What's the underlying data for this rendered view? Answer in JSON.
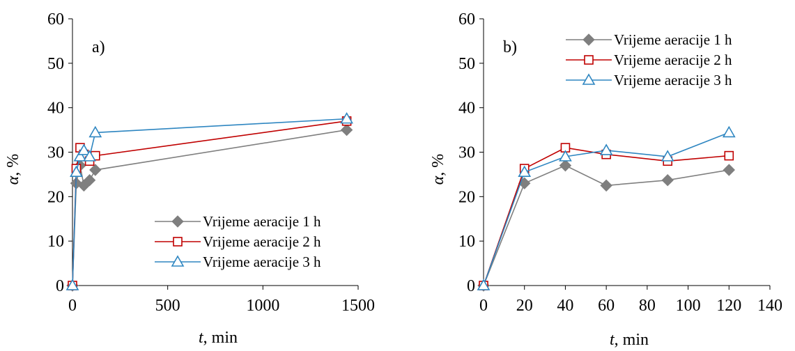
{
  "colors": {
    "series1": "#7f7f7f",
    "series2": "#c00000",
    "series3": "#2e86c1",
    "axis": "#000000"
  },
  "chart_data": [
    {
      "type": "line",
      "panel_label": "a)",
      "xlabel_italic": "t",
      "xlabel_rest": ", min",
      "ylabel_italic": "α",
      "ylabel_rest": ", %",
      "xlim": [
        0,
        1500
      ],
      "ylim": [
        0,
        60
      ],
      "xticks": [
        0,
        500,
        1000,
        1500
      ],
      "yticks": [
        0,
        10,
        20,
        30,
        40,
        50,
        60
      ],
      "legend_position": "bottom-right",
      "series": [
        {
          "name": "Vrijeme aeracije 1 h",
          "marker": "diamond",
          "x": [
            0,
            20,
            40,
            60,
            90,
            120,
            1440
          ],
          "y": [
            0,
            23,
            27,
            22.5,
            23.7,
            26,
            35
          ]
        },
        {
          "name": "Vrijeme aeracije 2 h",
          "marker": "square",
          "x": [
            0,
            20,
            40,
            60,
            90,
            120,
            1440
          ],
          "y": [
            0,
            26.3,
            31,
            29.5,
            28,
            29.2,
            37
          ]
        },
        {
          "name": "Vrijeme aeracije 3 h",
          "marker": "triangle",
          "x": [
            0,
            20,
            40,
            60,
            90,
            120,
            1440
          ],
          "y": [
            0,
            25.5,
            29,
            30.4,
            29,
            34.4,
            37.5
          ]
        }
      ]
    },
    {
      "type": "line",
      "panel_label": "b)",
      "xlabel_italic": "t",
      "xlabel_rest": ", min",
      "ylabel_italic": "α",
      "ylabel_rest": ", %",
      "xlim": [
        0,
        140
      ],
      "ylim": [
        0,
        60
      ],
      "xticks": [
        0,
        20,
        40,
        60,
        80,
        100,
        120,
        140
      ],
      "yticks": [
        0,
        10,
        20,
        30,
        40,
        50,
        60
      ],
      "legend_position": "top-right",
      "series": [
        {
          "name": "Vrijeme aeracije 1 h",
          "marker": "diamond",
          "x": [
            0,
            20,
            40,
            60,
            90,
            120
          ],
          "y": [
            0,
            23,
            27,
            22.5,
            23.7,
            26
          ]
        },
        {
          "name": "Vrijeme aeracije 2 h",
          "marker": "square",
          "x": [
            0,
            20,
            40,
            60,
            90,
            120
          ],
          "y": [
            0,
            26.3,
            31,
            29.5,
            28,
            29.2
          ]
        },
        {
          "name": "Vrijeme aeracije 3 h",
          "marker": "triangle",
          "x": [
            0,
            20,
            40,
            60,
            90,
            120
          ],
          "y": [
            0,
            25.5,
            29,
            30.4,
            29,
            34.4
          ]
        }
      ]
    }
  ]
}
